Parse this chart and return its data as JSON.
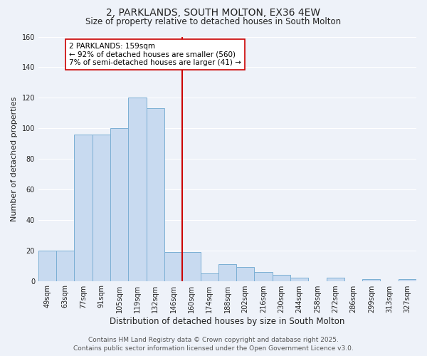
{
  "title": "2, PARKLANDS, SOUTH MOLTON, EX36 4EW",
  "subtitle": "Size of property relative to detached houses in South Molton",
  "xlabel": "Distribution of detached houses by size in South Molton",
  "ylabel": "Number of detached properties",
  "categories": [
    "49sqm",
    "63sqm",
    "77sqm",
    "91sqm",
    "105sqm",
    "119sqm",
    "132sqm",
    "146sqm",
    "160sqm",
    "174sqm",
    "188sqm",
    "202sqm",
    "216sqm",
    "230sqm",
    "244sqm",
    "258sqm",
    "272sqm",
    "286sqm",
    "299sqm",
    "313sqm",
    "327sqm"
  ],
  "values": [
    20,
    20,
    96,
    96,
    100,
    120,
    113,
    19,
    19,
    5,
    11,
    9,
    6,
    4,
    2,
    0,
    2,
    0,
    1,
    0,
    1
  ],
  "bar_color": "#c8daf0",
  "bar_edge_color": "#7bafd4",
  "vline_color": "#cc0000",
  "annotation_text": "2 PARKLANDS: 159sqm\n← 92% of detached houses are smaller (560)\n7% of semi-detached houses are larger (41) →",
  "annotation_box_facecolor": "#ffffff",
  "annotation_box_edgecolor": "#cc0000",
  "ylim": [
    0,
    160
  ],
  "yticks": [
    0,
    20,
    40,
    60,
    80,
    100,
    120,
    140,
    160
  ],
  "footer_line1": "Contains HM Land Registry data © Crown copyright and database right 2025.",
  "footer_line2": "Contains public sector information licensed under the Open Government Licence v3.0.",
  "bg_color": "#eef2f9",
  "grid_color": "#ffffff",
  "title_fontsize": 10,
  "subtitle_fontsize": 8.5,
  "xlabel_fontsize": 8.5,
  "ylabel_fontsize": 8,
  "tick_fontsize": 7,
  "footer_fontsize": 6.5,
  "annotation_fontsize": 7.5
}
